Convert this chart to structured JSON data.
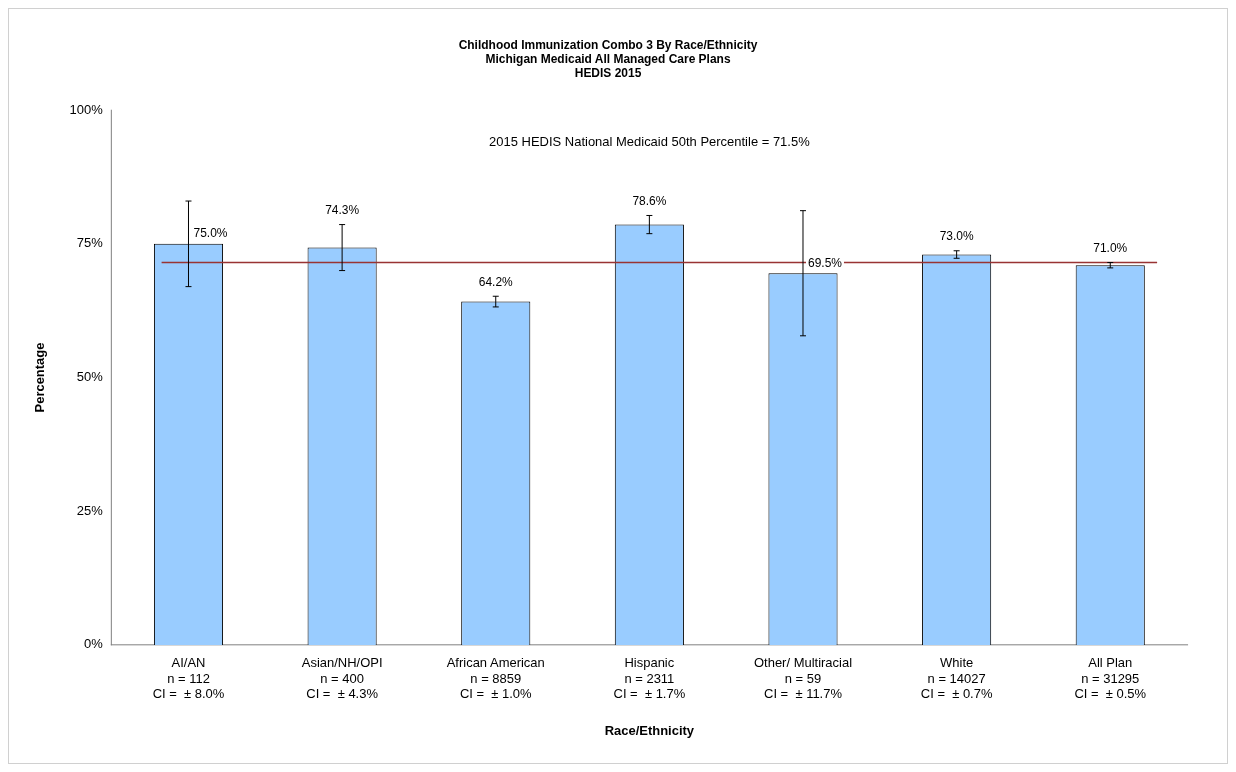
{
  "chart_data": {
    "type": "bar",
    "title": "Childhood Immunization Combo 3 By Race/Ethnicity\nMichigan Medicaid All Managed Care Plans\nHEDIS 2015",
    "xlabel": "Race/Ethnicity",
    "ylabel": "Percentage",
    "categories": [
      "AI/AN\nn = 112\nCI =  ± 8.0%",
      "Asian/NH/OPI\nn = 400\nCI =  ± 4.3%",
      "African American\nn = 8859\nCI =  ± 1.0%",
      "Hispanic\nn = 2311\nCI =  ± 1.7%",
      "Other/ Multiracial\nn = 59\nCI =  ± 11.7%",
      "White\nn = 14027\nCI =  ± 0.7%",
      "All Plan\nn = 31295\nCI =  ± 0.5%"
    ],
    "values": [
      75.0,
      74.3,
      64.2,
      78.6,
      69.5,
      73.0,
      71.0
    ],
    "errors": [
      8.0,
      4.3,
      1.0,
      1.7,
      11.7,
      0.7,
      0.5
    ],
    "value_labels": [
      "75.0%",
      "74.3%",
      "64.2%",
      "78.6%",
      "69.5%",
      "73.0%",
      "71.0%"
    ],
    "color": "#99ccff",
    "ylim": [
      0,
      100
    ],
    "yticks": [
      {
        "value": 0,
        "label": "0%"
      },
      {
        "value": 25,
        "label": "25%"
      },
      {
        "value": 50,
        "label": "50%"
      },
      {
        "value": 75,
        "label": "75%"
      },
      {
        "value": 100,
        "label": "100%"
      }
    ],
    "annotations": [
      "2015 HEDIS National Medicaid 50th Percentile = 71.5%"
    ],
    "ref_lines": [
      {
        "axis": "y",
        "value": 71.5,
        "color": "#993333"
      }
    ],
    "grid": false,
    "legend": false
  }
}
